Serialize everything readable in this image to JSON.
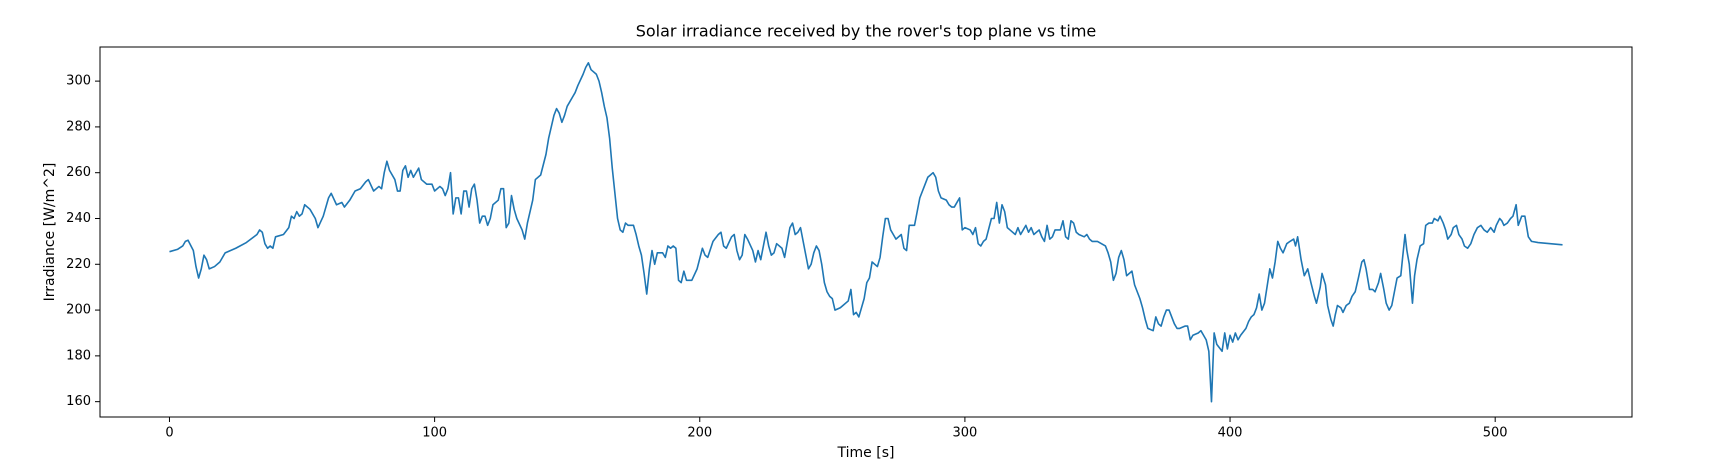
{
  "chart_data": {
    "type": "line",
    "title": "Solar irradiance received by the rover's top plane vs time",
    "x_label": "Time [s]",
    "y_label": "Irradiance [W/m^2]",
    "color": "#1f77b4",
    "xlim": [
      -26.2,
      551.6
    ],
    "ylim": [
      153.3,
      314.9
    ],
    "xticks": [
      0,
      100,
      200,
      300,
      400,
      500
    ],
    "yticks": [
      160,
      180,
      200,
      220,
      240,
      260,
      280,
      300
    ],
    "x": [
      0,
      3,
      5,
      6,
      7,
      9,
      10,
      11,
      12,
      13,
      14,
      15,
      17,
      19,
      21,
      25,
      29,
      33,
      34,
      35,
      36,
      37,
      38,
      39,
      40,
      43,
      45,
      46,
      47,
      48,
      49,
      50,
      51,
      53,
      55,
      56,
      58,
      60,
      61,
      63,
      65,
      66,
      68,
      70,
      72,
      74,
      75,
      77,
      79,
      80,
      81,
      82,
      83,
      85,
      86,
      87,
      88,
      89,
      90,
      91,
      92,
      94,
      95,
      97,
      99,
      100,
      102,
      103,
      104,
      105,
      106,
      107,
      108,
      109,
      110,
      111,
      112,
      113,
      114,
      115,
      116,
      117,
      118,
      119,
      120,
      121,
      122,
      124,
      125,
      126,
      127,
      128,
      129,
      130,
      131,
      133,
      134,
      135,
      137,
      138,
      140,
      142,
      143,
      145,
      146,
      147,
      148,
      149,
      150,
      152,
      153,
      154,
      156,
      157,
      158,
      159,
      161,
      162,
      163,
      164,
      165,
      166,
      167,
      168,
      169,
      170,
      171,
      172,
      173,
      174,
      175,
      176,
      177,
      178,
      179,
      180,
      181,
      182,
      183,
      184,
      186,
      187,
      188,
      189,
      190,
      191,
      192,
      193,
      194,
      195,
      197,
      199,
      201,
      202,
      203,
      205,
      207,
      208,
      209,
      210,
      212,
      213,
      214,
      215,
      216,
      217,
      218,
      220,
      221,
      222,
      223,
      225,
      226,
      227,
      228,
      229,
      231,
      232,
      234,
      235,
      236,
      237,
      238,
      239,
      240,
      241,
      242,
      243,
      244,
      245,
      246,
      247,
      248,
      249,
      250,
      251,
      253,
      254,
      256,
      257,
      258,
      259,
      260,
      261,
      262,
      263,
      264,
      265,
      267,
      268,
      269,
      270,
      271,
      272,
      273,
      274,
      276,
      277,
      278,
      279,
      281,
      282,
      283,
      285,
      286,
      287,
      288,
      289,
      290,
      291,
      293,
      294,
      295,
      296,
      297,
      298,
      299,
      300,
      302,
      303,
      304,
      305,
      306,
      307,
      308,
      310,
      311,
      312,
      313,
      314,
      315,
      316,
      317,
      319,
      320,
      321,
      322,
      323,
      324,
      325,
      326,
      328,
      329,
      330,
      331,
      332,
      333,
      334,
      336,
      337,
      338,
      339,
      340,
      341,
      342,
      343,
      345,
      346,
      347,
      348,
      349,
      350,
      353,
      354,
      355,
      356,
      357,
      358,
      359,
      360,
      361,
      363,
      364,
      365,
      366,
      367,
      368,
      369,
      371,
      372,
      373,
      374,
      375,
      376,
      377,
      379,
      380,
      381,
      383,
      384,
      385,
      386,
      388,
      389,
      390,
      391,
      392,
      393,
      394,
      395,
      397,
      398,
      399,
      400,
      401,
      402,
      403,
      404,
      406,
      407,
      408,
      409,
      410,
      411,
      412,
      413,
      415,
      416,
      417,
      418,
      419,
      420,
      421.4,
      422.6,
      424,
      424.7,
      425.5,
      426.8,
      428,
      429.3,
      430.5,
      431.8,
      432.6,
      434,
      434.7,
      436,
      436.8,
      438,
      438.9,
      439.7,
      440.5,
      441.8,
      442.6,
      443.8,
      445,
      446,
      447.2,
      448.4,
      449.7,
      450.5,
      451.3,
      452.6,
      453.8,
      454.7,
      456,
      456.8,
      458,
      458.9,
      460,
      461,
      462,
      463,
      464.4,
      465,
      466,
      466.7,
      467.6,
      468.8,
      469.6,
      470.5,
      471.7,
      473,
      473.8,
      475,
      476.3,
      477,
      478.4,
      479.2,
      480.4,
      481.3,
      482.1,
      483.4,
      484.2,
      485.4,
      486.3,
      487.5,
      488.4,
      489.6,
      490.8,
      492,
      493.3,
      494.6,
      495.8,
      497,
      498.3,
      499.6,
      500.4,
      501.7,
      502.5,
      503.3,
      504.6,
      505.8,
      506.7,
      507.9,
      508.7,
      510,
      511.2,
      512.5,
      513.7,
      516.2,
      525.4
    ],
    "values": [
      225.5,
      226.5,
      228,
      230,
      230.5,
      226,
      219,
      214,
      218,
      224,
      222,
      218,
      219,
      221,
      225,
      227,
      229.5,
      233,
      235,
      234,
      229,
      227,
      228,
      227,
      232,
      233,
      236,
      241,
      240,
      243,
      241,
      242,
      246,
      244,
      240,
      236,
      241,
      249,
      251,
      246,
      247,
      245,
      248,
      252,
      253,
      256,
      257,
      252,
      254,
      253,
      260,
      265,
      261,
      257,
      252,
      252,
      261,
      263,
      258,
      261,
      258,
      262,
      257,
      255,
      255,
      252,
      254,
      253,
      250,
      253,
      260,
      242,
      249,
      249,
      242,
      252,
      252,
      245,
      253,
      255,
      248,
      238,
      241,
      241,
      237,
      240,
      246,
      248,
      253,
      253,
      236,
      238,
      250,
      244,
      240,
      235,
      231,
      238,
      248,
      257,
      259,
      268,
      275,
      285,
      288,
      286,
      282,
      285,
      289,
      293,
      295,
      298,
      303,
      306,
      308,
      305,
      303,
      300,
      295,
      289,
      284,
      275,
      262,
      251,
      240,
      235,
      234,
      238,
      237,
      237,
      237,
      233,
      228,
      224,
      216,
      207,
      218,
      226,
      220,
      225,
      225,
      223,
      228,
      227,
      228,
      227,
      213,
      212,
      217,
      213,
      213,
      218,
      227,
      224,
      223,
      230,
      233,
      234,
      228,
      227,
      232,
      233,
      226,
      222,
      224,
      233,
      231,
      226,
      221,
      226,
      222,
      234,
      228,
      224,
      225,
      229,
      227,
      223,
      236,
      238,
      233,
      234,
      236,
      230,
      224,
      218,
      220,
      225,
      228,
      226,
      220,
      212,
      208,
      206,
      205,
      200,
      201,
      202,
      204,
      209,
      198,
      199,
      197,
      201,
      205,
      212,
      214,
      221,
      219,
      223,
      232,
      240,
      240,
      235,
      233,
      231,
      233,
      227,
      226,
      237,
      237,
      243,
      249,
      255,
      258,
      259,
      260,
      258,
      252,
      249,
      248,
      246,
      245,
      245,
      247,
      249,
      235,
      236,
      235,
      233,
      236,
      229,
      228,
      230,
      231,
      240,
      240,
      247,
      238,
      246,
      243,
      236,
      235,
      233,
      236,
      233,
      235,
      237,
      234,
      236,
      233,
      235,
      232,
      230,
      237,
      231,
      232,
      235,
      235,
      239,
      232,
      231,
      239,
      238,
      234,
      233,
      232,
      233,
      231,
      230,
      230,
      230,
      228,
      225,
      221,
      213,
      216,
      223,
      226,
      222,
      215,
      217,
      211,
      208,
      205,
      201,
      196,
      192,
      191,
      197,
      194,
      193,
      197,
      200,
      200,
      194,
      192,
      192,
      193,
      193,
      187,
      189,
      190,
      191,
      189,
      187,
      182,
      160,
      190,
      185,
      182,
      190,
      183,
      189,
      186,
      190,
      187,
      189,
      192,
      195,
      197,
      198,
      201,
      207,
      200,
      203,
      218,
      214,
      221,
      230,
      227,
      225,
      229,
      230,
      231,
      228,
      232,
      222,
      215,
      218,
      212,
      206,
      203,
      210,
      216,
      211,
      202,
      196,
      193,
      198,
      202,
      201,
      199,
      202,
      203,
      206,
      208,
      214,
      221,
      222,
      218,
      209,
      209,
      208,
      212,
      216,
      209,
      203,
      200,
      202,
      208,
      214,
      215,
      222,
      233,
      226,
      220,
      203,
      215,
      222,
      228,
      229,
      237,
      238,
      238,
      240,
      239,
      241,
      238,
      235,
      231,
      233,
      236,
      237,
      233,
      231,
      228,
      227,
      229,
      233,
      236,
      237,
      235,
      234,
      236,
      234,
      237,
      240,
      239,
      237,
      238,
      240,
      241,
      246,
      237,
      241,
      241,
      232,
      230,
      229.5,
      228.5
    ]
  }
}
